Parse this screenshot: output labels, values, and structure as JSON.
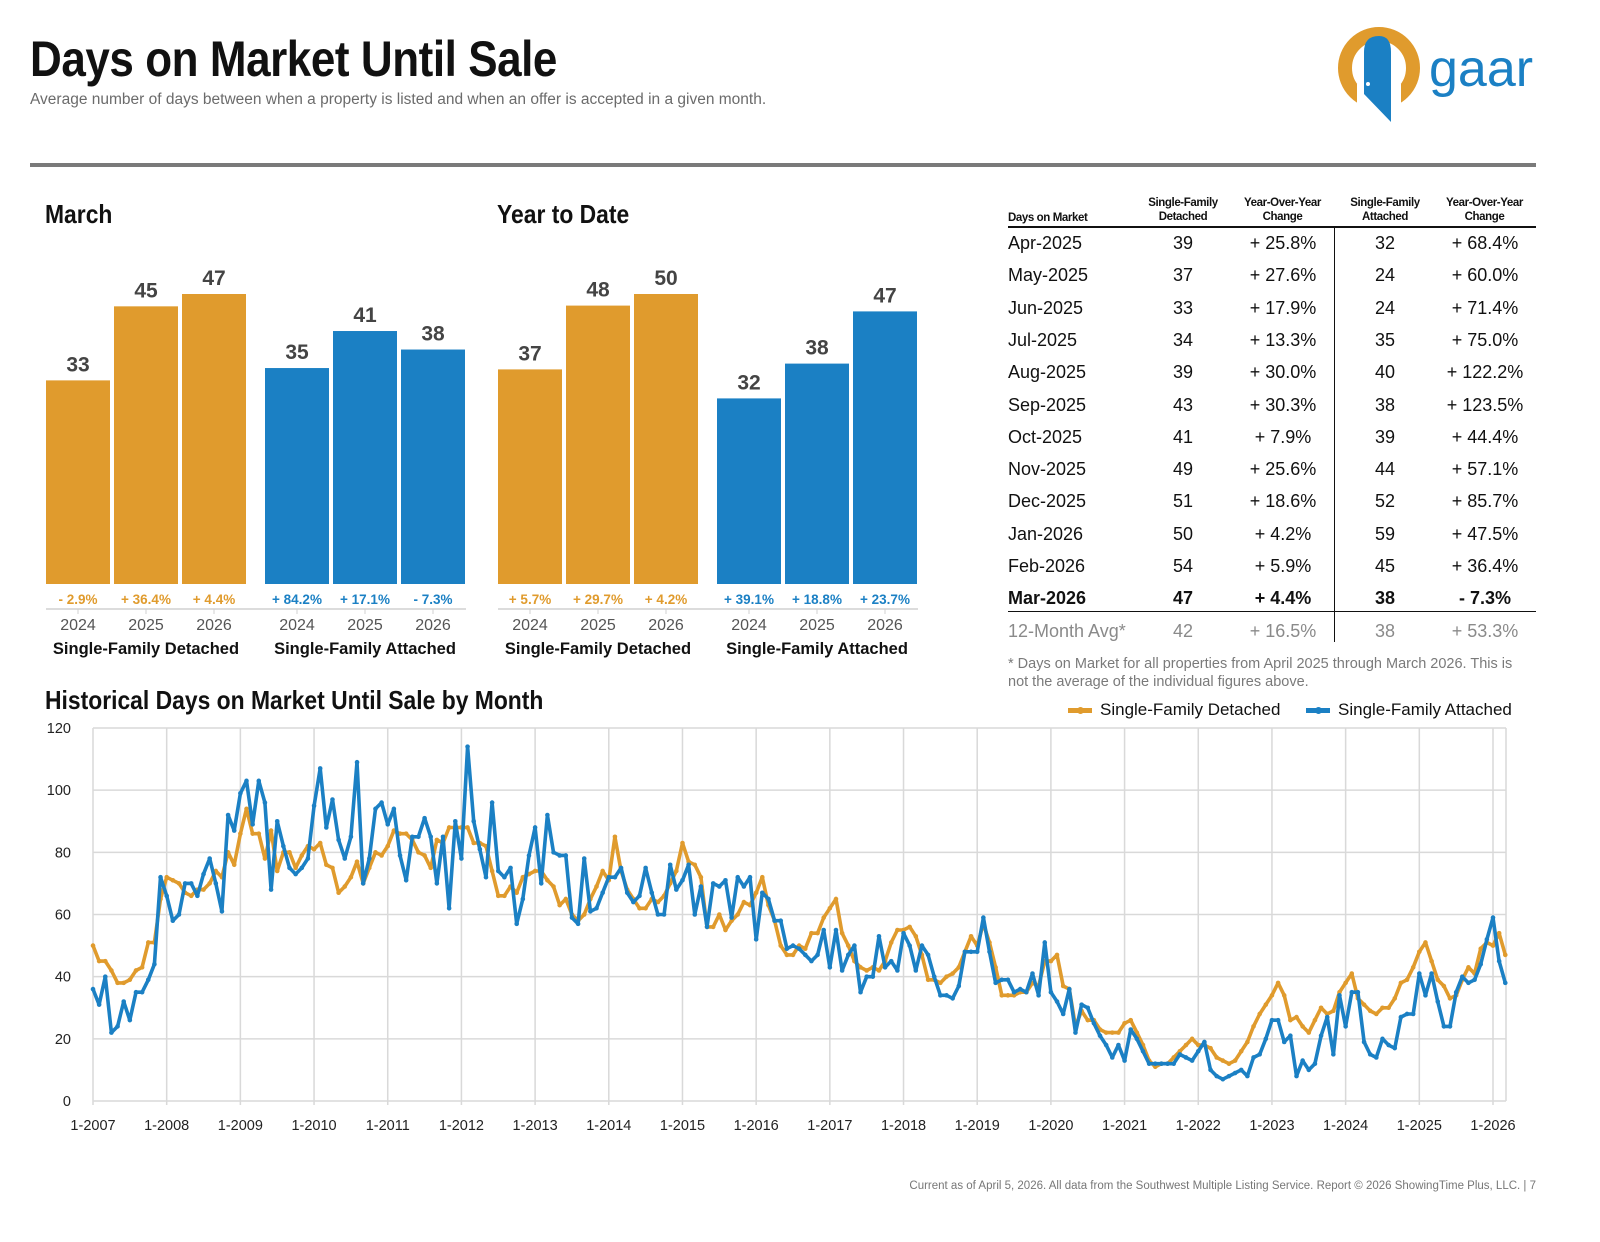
{
  "header": {
    "title": "Days on Market Until Sale",
    "subtitle": "Average number of days between when a property is listed and when an offer is accepted in a given month.",
    "logo_text": "gaar"
  },
  "colors": {
    "detached": "#E09B2D",
    "attached": "#1B80C4",
    "grid": "#d9d9d9"
  },
  "chart_data": [
    {
      "type": "bar",
      "title": "March",
      "groups": [
        {
          "name": "Single-Family Detached",
          "color": "#E09B2D",
          "categories": [
            "2024",
            "2025",
            "2026"
          ],
          "values": [
            33,
            45,
            47
          ],
          "changes": [
            "- 2.9%",
            "+ 36.4%",
            "+ 4.4%"
          ]
        },
        {
          "name": "Single-Family Attached",
          "color": "#1B80C4",
          "categories": [
            "2024",
            "2025",
            "2026"
          ],
          "values": [
            35,
            41,
            38
          ],
          "changes": [
            "+ 84.2%",
            "+ 17.1%",
            "- 7.3%"
          ]
        }
      ]
    },
    {
      "type": "bar",
      "title": "Year to Date",
      "groups": [
        {
          "name": "Single-Family Detached",
          "color": "#E09B2D",
          "categories": [
            "2024",
            "2025",
            "2026"
          ],
          "values": [
            37,
            48,
            50
          ],
          "changes": [
            "+ 5.7%",
            "+ 29.7%",
            "+ 4.2%"
          ]
        },
        {
          "name": "Single-Family Attached",
          "color": "#1B80C4",
          "categories": [
            "2024",
            "2025",
            "2026"
          ],
          "values": [
            32,
            38,
            47
          ],
          "changes": [
            "+ 39.1%",
            "+ 18.8%",
            "+ 23.7%"
          ]
        }
      ]
    },
    {
      "type": "line",
      "title": "Historical Days on Market Until Sale by Month",
      "x_range": [
        "1-2007",
        "3-2026"
      ],
      "x_ticks": [
        "1-2007",
        "1-2008",
        "1-2009",
        "1-2010",
        "1-2011",
        "1-2012",
        "1-2013",
        "1-2014",
        "1-2015",
        "1-2016",
        "1-2017",
        "1-2018",
        "1-2019",
        "1-2020",
        "1-2021",
        "1-2022",
        "1-2023",
        "1-2024",
        "1-2025",
        "1-2026"
      ],
      "y_ticks": [
        0,
        20,
        40,
        60,
        80,
        100,
        120
      ],
      "ylim": [
        0,
        120
      ],
      "grid": true,
      "legend": "top-right",
      "series": [
        {
          "name": "Single-Family Detached",
          "color": "#E09B2D",
          "values": [
            50,
            45,
            45,
            42,
            38,
            38,
            39,
            42,
            43,
            51,
            51,
            65,
            72,
            71,
            70,
            67,
            66,
            68,
            68,
            70,
            74,
            72,
            80,
            76,
            86,
            94,
            86,
            86,
            78,
            87,
            74,
            80,
            80,
            75,
            79,
            82,
            81,
            83,
            76,
            75,
            67,
            69,
            72,
            77,
            70,
            75,
            80,
            79,
            82,
            87,
            86,
            86,
            84,
            80,
            79,
            75,
            84,
            83,
            88,
            88,
            88,
            88,
            83,
            83,
            82,
            74,
            66,
            66,
            69,
            67,
            72,
            73,
            74,
            74,
            71,
            69,
            63,
            65,
            60,
            58,
            60,
            65,
            69,
            74,
            71,
            85,
            74,
            68,
            65,
            62,
            62,
            65,
            64,
            66,
            70,
            74,
            83,
            77,
            76,
            72,
            56,
            56,
            60,
            55,
            58,
            60,
            64,
            63,
            67,
            72,
            63,
            58,
            50,
            47,
            47,
            50,
            49,
            54,
            54,
            59,
            62,
            65,
            54,
            50,
            45,
            43,
            42,
            43,
            42,
            45,
            51,
            55,
            55,
            56,
            53,
            47,
            39,
            39,
            38,
            40,
            41,
            43,
            48,
            53,
            50,
            57,
            51,
            43,
            34,
            34,
            34,
            35,
            35,
            38,
            37,
            45,
            45,
            47,
            37,
            36,
            24,
            29,
            26,
            26,
            23,
            22,
            22,
            22,
            25,
            26,
            22,
            18,
            13,
            11,
            12,
            12,
            14,
            16,
            18,
            20,
            18,
            18,
            17,
            14,
            13,
            12,
            13,
            16,
            19,
            24,
            28,
            31,
            34,
            38,
            34,
            26,
            27,
            24,
            22,
            26,
            30,
            28,
            29,
            35,
            38,
            41,
            33,
            31,
            29,
            28,
            30,
            30,
            33,
            38,
            39,
            43,
            48,
            51,
            45,
            39,
            37,
            33,
            34,
            39,
            43,
            41,
            49,
            51,
            50,
            54,
            47
          ]
        },
        {
          "name": "Single-Family Attached",
          "color": "#1B80C4",
          "values": [
            36,
            31,
            40,
            22,
            24,
            32,
            26,
            35,
            35,
            39,
            44,
            72,
            66,
            58,
            60,
            70,
            70,
            66,
            73,
            78,
            70,
            61,
            92,
            87,
            99,
            103,
            89,
            103,
            96,
            68,
            90,
            82,
            75,
            73,
            75,
            78,
            95,
            107,
            88,
            97,
            84,
            78,
            85,
            109,
            70,
            78,
            94,
            96,
            89,
            94,
            79,
            71,
            85,
            85,
            91,
            85,
            70,
            85,
            62,
            90,
            78,
            114,
            90,
            81,
            72,
            96,
            74,
            72,
            75,
            57,
            65,
            79,
            88,
            70,
            92,
            80,
            79,
            79,
            59,
            57,
            78,
            61,
            62,
            67,
            72,
            72,
            75,
            67,
            64,
            66,
            75,
            67,
            60,
            60,
            76,
            68,
            71,
            76,
            60,
            69,
            56,
            70,
            69,
            71,
            59,
            72,
            69,
            72,
            52,
            67,
            65,
            58,
            58,
            49,
            50,
            49,
            47,
            45,
            47,
            55,
            43,
            55,
            42,
            47,
            50,
            35,
            40,
            40,
            53,
            43,
            45,
            42,
            54,
            50,
            42,
            50,
            47,
            40,
            34,
            34,
            33,
            37,
            48,
            48,
            48,
            59,
            48,
            38,
            39,
            39,
            35,
            36,
            35,
            41,
            34,
            51,
            35,
            32,
            28,
            36,
            22,
            31,
            30,
            25,
            21,
            18,
            14,
            18,
            13,
            23,
            20,
            16,
            12,
            12,
            12,
            12,
            12,
            15,
            14,
            13,
            16,
            19,
            10,
            8,
            7,
            8,
            9,
            10,
            8,
            14,
            15,
            20,
            26,
            26,
            19,
            21,
            8,
            13,
            10,
            12,
            21,
            27,
            15,
            34,
            24,
            35,
            35,
            19,
            15,
            14,
            20,
            18,
            17,
            27,
            28,
            28,
            41,
            34,
            41,
            32,
            24,
            24,
            35,
            40,
            38,
            39,
            44,
            52,
            59,
            45,
            38
          ]
        }
      ]
    }
  ],
  "table": {
    "headers": [
      "Days on Market",
      "Single-Family Detached",
      "Year-Over-Year Change",
      "Single-Family Attached",
      "Year-Over-Year Change"
    ],
    "rows": [
      [
        "Apr-2025",
        "39",
        "+ 25.8%",
        "32",
        "+ 68.4%"
      ],
      [
        "May-2025",
        "37",
        "+ 27.6%",
        "24",
        "+ 60.0%"
      ],
      [
        "Jun-2025",
        "33",
        "+ 17.9%",
        "24",
        "+ 71.4%"
      ],
      [
        "Jul-2025",
        "34",
        "+ 13.3%",
        "35",
        "+ 75.0%"
      ],
      [
        "Aug-2025",
        "39",
        "+ 30.0%",
        "40",
        "+ 122.2%"
      ],
      [
        "Sep-2025",
        "43",
        "+ 30.3%",
        "38",
        "+ 123.5%"
      ],
      [
        "Oct-2025",
        "41",
        "+ 7.9%",
        "39",
        "+ 44.4%"
      ],
      [
        "Nov-2025",
        "49",
        "+ 25.6%",
        "44",
        "+ 57.1%"
      ],
      [
        "Dec-2025",
        "51",
        "+ 18.6%",
        "52",
        "+ 85.7%"
      ],
      [
        "Jan-2026",
        "50",
        "+ 4.2%",
        "59",
        "+ 47.5%"
      ],
      [
        "Feb-2026",
        "54",
        "+ 5.9%",
        "45",
        "+ 36.4%"
      ],
      [
        "Mar-2026",
        "47",
        "+ 4.4%",
        "38",
        "- 7.3%"
      ]
    ],
    "average_row": [
      "12-Month Avg*",
      "42",
      "+ 16.5%",
      "38",
      "+ 53.3%"
    ],
    "footnote": "* Days on Market for all properties from April 2025 through March 2026. This is not the average of the individual figures above."
  },
  "footer": "Current as of April 5, 2026. All data from the Southwest Multiple Listing Service. Report © 2026 ShowingTime Plus, LLC.  |  7"
}
